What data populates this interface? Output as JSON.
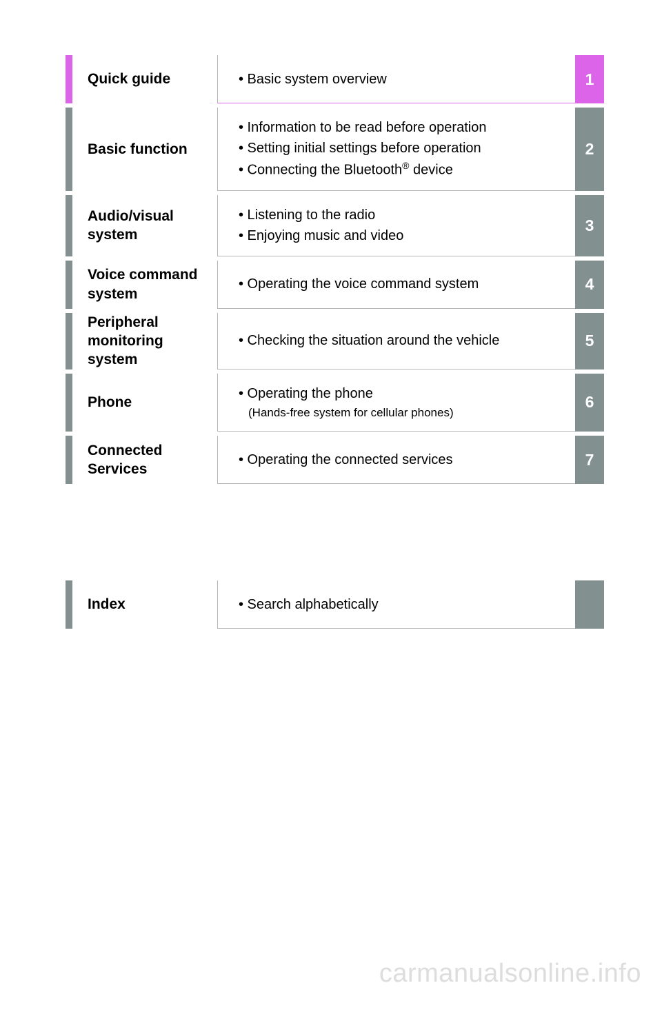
{
  "colors": {
    "accent_magenta": "#db64e8",
    "tab_gray": "#82908f",
    "border_gray": "#b5b5b5",
    "text_black": "#000000",
    "tab_text": "#ffffff",
    "watermark": "#dddddd",
    "background": "#ffffff"
  },
  "typography": {
    "title_fontsize": 21,
    "desc_fontsize": 20,
    "tab_fontsize": 23,
    "subnote_fontsize": 17,
    "watermark_fontsize": 38
  },
  "sections": [
    {
      "title": "Quick guide",
      "tab": "1",
      "highlight": true,
      "items": [
        "• Basic system overview"
      ]
    },
    {
      "title": "Basic function",
      "tab": "2",
      "highlight": false,
      "items": [
        "• Information to be read before operation",
        "• Setting initial settings before operation",
        "• Connecting the Bluetooth® device"
      ]
    },
    {
      "title": "Audio/visual system",
      "tab": "3",
      "highlight": false,
      "items": [
        "• Listening to the radio",
        "• Enjoying music and video"
      ]
    },
    {
      "title": "Voice command system",
      "tab": "4",
      "highlight": false,
      "items": [
        "• Operating the voice command system"
      ]
    },
    {
      "title": "Peripheral monitoring system",
      "tab": "5",
      "highlight": false,
      "items": [
        "• Checking the situation around the vehicle"
      ]
    },
    {
      "title": "Phone",
      "tab": "6",
      "highlight": false,
      "items": [
        "• Operating the phone"
      ],
      "subnote": "(Hands-free system for cellular phones)"
    },
    {
      "title": "Connected Services",
      "tab": "7",
      "highlight": false,
      "items": [
        "• Operating the connected services"
      ]
    }
  ],
  "index": {
    "title": "Index",
    "items": [
      "• Search alphabetically"
    ]
  },
  "watermark": "carmanualsonline.info"
}
